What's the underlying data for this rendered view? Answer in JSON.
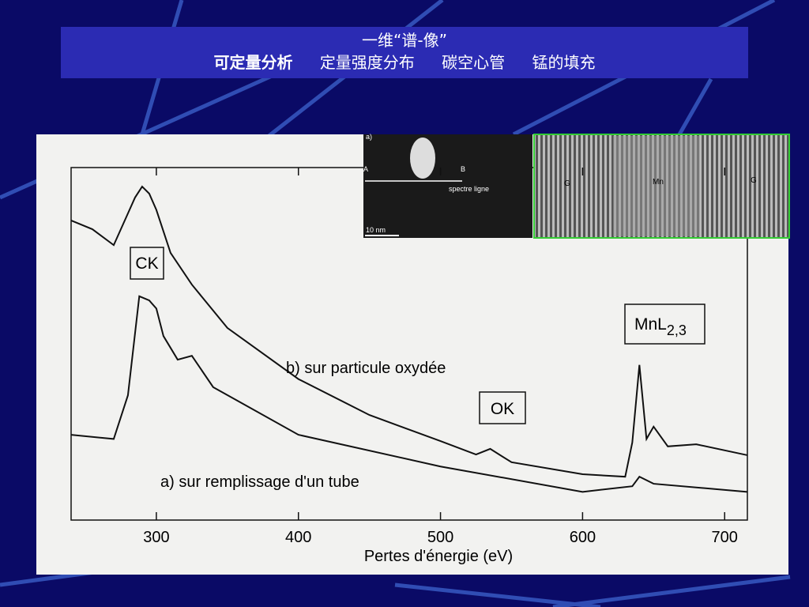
{
  "slide": {
    "title": "一维“谱-像”",
    "items": [
      "可定量分析",
      "定量强度分布",
      "碳空心管",
      "锰的填充"
    ]
  },
  "inset": {
    "left_labels": [
      "a)",
      "A",
      "B",
      "spectre ligne",
      "10 nm"
    ],
    "right_labels": [
      "G",
      "Mn",
      "G"
    ]
  },
  "chart_data": {
    "type": "line",
    "x_label": "Pertes d'énergie (eV)",
    "xlim": [
      240,
      716
    ],
    "xticks": [
      300,
      400,
      500,
      600,
      700
    ],
    "ylim": [
      0,
      100
    ],
    "annotations": [
      "CK",
      "OK"
    ],
    "annotation_mn": {
      "text": "MnL",
      "sub": "2,3"
    },
    "series": [
      {
        "name": "b) sur particule oxydée",
        "color": "#111111",
        "x": [
          240,
          255,
          270,
          280,
          285,
          290,
          295,
          300,
          310,
          325,
          350,
          400,
          450,
          500,
          525,
          535,
          550,
          600,
          630,
          635,
          640,
          645,
          650,
          660,
          680,
          716
        ],
        "values": [
          85,
          82.5,
          78,
          87,
          91.5,
          94.6,
          92.6,
          88,
          75.8,
          66.8,
          54.5,
          40,
          29.8,
          22.4,
          18.6,
          20.2,
          16.4,
          13,
          12.3,
          22,
          44,
          23,
          26.5,
          20.9,
          21.5,
          18.4
        ]
      },
      {
        "name": "a) sur remplissage d'un tube",
        "color": "#111111",
        "x": [
          240,
          270,
          280,
          288,
          295,
          300,
          305,
          315,
          325,
          340,
          400,
          500,
          600,
          635,
          640,
          650,
          716
        ],
        "values": [
          24.2,
          23,
          35.4,
          63.5,
          62.3,
          60,
          52.2,
          45.5,
          46.6,
          37.7,
          24.2,
          15.2,
          8,
          9.6,
          12.3,
          10.3,
          8
        ]
      }
    ]
  }
}
